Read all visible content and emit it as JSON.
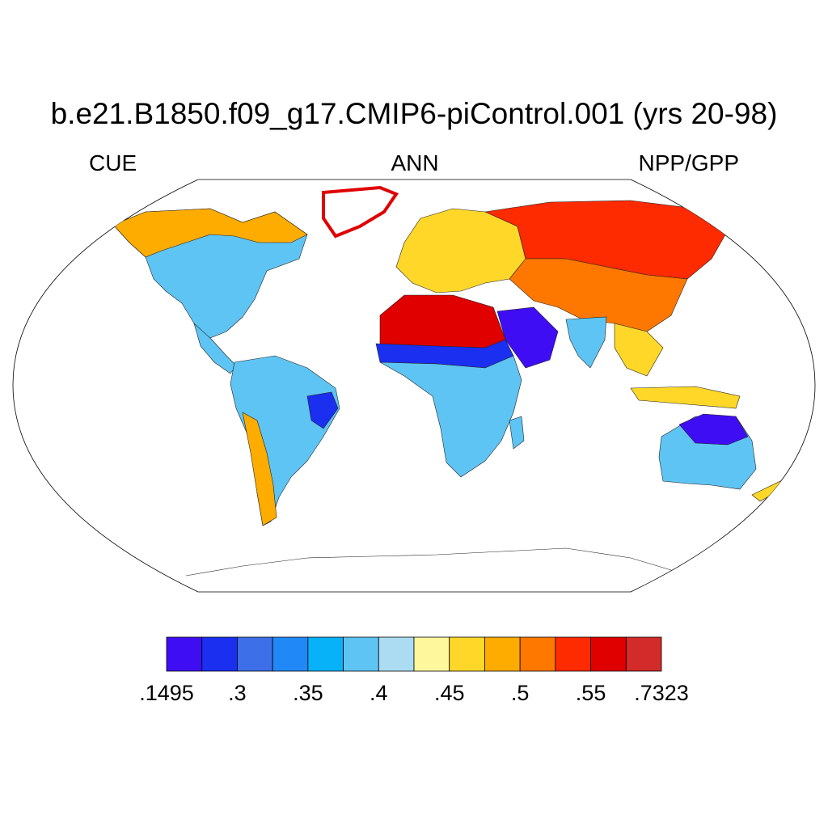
{
  "title": "b.e21.B1850.f09_g17.CMIP6-piControl.001 (yrs 20-98)",
  "left_label": "CUE",
  "center_label": "ANN",
  "right_label": "NPP/GPP",
  "colorbar": {
    "colors": [
      "#3f0df4",
      "#1a2ff0",
      "#3c6fe8",
      "#2188f8",
      "#08b2f8",
      "#5ec4f4",
      "#acdcf2",
      "#fff79c",
      "#fed728",
      "#feac00",
      "#fe7800",
      "#fe2a00",
      "#e00000",
      "#d32a2a"
    ],
    "labels": [
      ".1495",
      ".3",
      ".35",
      ".4",
      ".45",
      ".5",
      ".55",
      ".7323"
    ]
  },
  "regions": [
    {
      "name": "north-america",
      "color": "#5ec4f4"
    },
    {
      "name": "north-america-north",
      "color": "#feac00"
    },
    {
      "name": "greenland-coast",
      "color": "#e00000"
    },
    {
      "name": "south-america",
      "color": "#5ec4f4"
    },
    {
      "name": "andes-strip",
      "color": "#feac00"
    },
    {
      "name": "amazon-east",
      "color": "#1a2ff0"
    },
    {
      "name": "europe",
      "color": "#fed728"
    },
    {
      "name": "siberia",
      "color": "#fe2a00"
    },
    {
      "name": "central-asia",
      "color": "#fe7800"
    },
    {
      "name": "sahara",
      "color": "#fed728"
    },
    {
      "name": "sahel-band",
      "color": "#3f0df4"
    },
    {
      "name": "africa",
      "color": "#5ec4f4"
    },
    {
      "name": "arabia",
      "color": "#e00000"
    },
    {
      "name": "india",
      "color": "#1a2ff0"
    },
    {
      "name": "southeast-asia",
      "color": "#5ec4f4"
    },
    {
      "name": "australia",
      "color": "#5ec4f4"
    },
    {
      "name": "australia-north",
      "color": "#3f0df4"
    }
  ]
}
